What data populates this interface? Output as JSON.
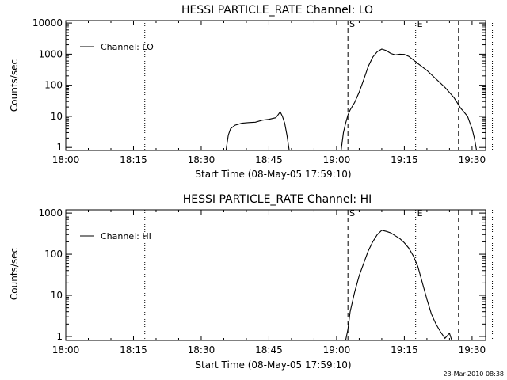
{
  "footer": {
    "timestamp": "23-Mar-2010 08:38"
  },
  "chart_data": [
    {
      "type": "line",
      "title": "HESSI PARTICLE_RATE Channel: LO",
      "xlabel": "Start Time (08-May-05 17:59:10)",
      "ylabel": "Counts/sec",
      "y_scale": "log",
      "ylim": [
        0.8,
        12000
      ],
      "xlim_minutes": [
        0,
        93
      ],
      "x_tick_labels": [
        "18:00",
        "18:15",
        "18:30",
        "18:45",
        "19:00",
        "19:15",
        "19:30"
      ],
      "y_tick_labels": [
        "1",
        "10",
        "100",
        "1000",
        "10000"
      ],
      "y_tick_values": [
        1,
        10,
        100,
        1000,
        10000
      ],
      "legend": {
        "label": "Channel: LO",
        "placement": "top-left"
      },
      "markers": [
        {
          "label": "S",
          "x_minutes": 62.5,
          "style": "dashed"
        },
        {
          "label": "E",
          "x_minutes": 77.5,
          "style": "dotted"
        },
        {
          "label": "",
          "x_minutes": 17.5,
          "style": "dotted"
        },
        {
          "label": "",
          "x_minutes": 87.0,
          "style": "dashed"
        },
        {
          "label": "",
          "x_minutes": 94.5,
          "style": "dotted"
        }
      ],
      "series": [
        {
          "name": "Channel: LO",
          "segments": [
            [
              [
                35.5,
                0.8
              ],
              [
                36,
                2.5
              ],
              [
                36.5,
                4
              ],
              [
                37.5,
                5.2
              ],
              [
                39,
                6
              ],
              [
                40.5,
                6.3
              ],
              [
                42,
                6.5
              ],
              [
                43.5,
                7.5
              ],
              [
                45,
                8
              ],
              [
                46.5,
                9
              ],
              [
                47,
                11
              ],
              [
                47.5,
                14
              ],
              [
                48,
                10
              ],
              [
                48.5,
                6
              ],
              [
                49,
                2.5
              ],
              [
                49.5,
                0.8
              ]
            ],
            [
              [
                61,
                0.8
              ],
              [
                61.5,
                3
              ],
              [
                62,
                6
              ],
              [
                62.5,
                11
              ],
              [
                63,
                16
              ],
              [
                64,
                28
              ],
              [
                65,
                60
              ],
              [
                66,
                150
              ],
              [
                67,
                400
              ],
              [
                68,
                800
              ],
              [
                69,
                1200
              ],
              [
                70,
                1450
              ],
              [
                71,
                1300
              ],
              [
                72,
                1050
              ],
              [
                73,
                950
              ],
              [
                74,
                1000
              ],
              [
                75,
                980
              ],
              [
                76,
                850
              ],
              [
                77,
                650
              ],
              [
                78,
                500
              ],
              [
                80,
                300
              ],
              [
                82,
                160
              ],
              [
                84,
                85
              ],
              [
                86,
                40
              ],
              [
                87.5,
                18
              ],
              [
                88,
                15
              ],
              [
                89,
                10
              ],
              [
                90,
                4
              ],
              [
                90.5,
                2
              ],
              [
                91,
                0.8
              ]
            ]
          ]
        }
      ]
    },
    {
      "type": "line",
      "title": "HESSI PARTICLE_RATE Channel: HI",
      "xlabel": "Start Time (08-May-05 17:59:10)",
      "ylabel": "Counts/sec",
      "y_scale": "log",
      "ylim": [
        0.8,
        1200
      ],
      "xlim_minutes": [
        0,
        93
      ],
      "x_tick_labels": [
        "18:00",
        "18:15",
        "18:30",
        "18:45",
        "19:00",
        "19:15",
        "19:30"
      ],
      "y_tick_labels": [
        "1",
        "10",
        "100",
        "1000"
      ],
      "y_tick_values": [
        1,
        10,
        100,
        1000
      ],
      "legend": {
        "label": "Channel: HI",
        "placement": "top-left"
      },
      "markers": [
        {
          "label": "S",
          "x_minutes": 62.5,
          "style": "dashed"
        },
        {
          "label": "E",
          "x_minutes": 77.5,
          "style": "dotted"
        },
        {
          "label": "",
          "x_minutes": 17.5,
          "style": "dotted"
        },
        {
          "label": "",
          "x_minutes": 87.0,
          "style": "dashed"
        },
        {
          "label": "",
          "x_minutes": 94.5,
          "style": "dotted"
        }
      ],
      "series": [
        {
          "name": "Channel: HI",
          "segments": [
            [
              [
                62,
                0.8
              ],
              [
                62.5,
                1.5
              ],
              [
                63,
                4
              ],
              [
                64,
                12
              ],
              [
                65,
                30
              ],
              [
                66,
                60
              ],
              [
                67,
                120
              ],
              [
                68,
                200
              ],
              [
                69,
                300
              ],
              [
                70,
                380
              ],
              [
                71,
                360
              ],
              [
                72,
                330
              ],
              [
                73,
                280
              ],
              [
                74,
                240
              ],
              [
                75,
                190
              ],
              [
                76,
                140
              ],
              [
                77,
                90
              ],
              [
                78,
                50
              ],
              [
                79,
                20
              ],
              [
                80,
                8
              ],
              [
                81,
                3.5
              ],
              [
                82,
                2
              ],
              [
                83,
                1.3
              ],
              [
                84,
                0.9
              ],
              [
                85,
                1.2
              ],
              [
                85.5,
                0.8
              ]
            ]
          ]
        }
      ]
    }
  ]
}
